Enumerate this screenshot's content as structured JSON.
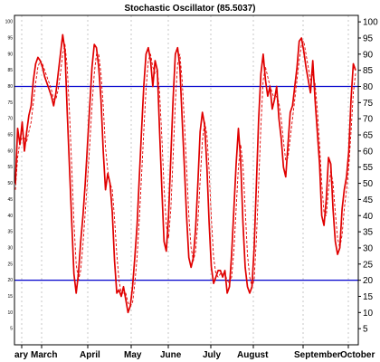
{
  "chart_data": {
    "type": "line",
    "title": "Stochastic Oscillator (85.5037)",
    "xlabel": "",
    "ylabel": "",
    "ylim": [
      0,
      102
    ],
    "y_ticks": [
      5,
      10,
      15,
      20,
      25,
      30,
      35,
      40,
      45,
      50,
      55,
      60,
      65,
      70,
      75,
      80,
      85,
      90,
      95,
      100
    ],
    "x_labels": [
      "ary",
      "March",
      "April",
      "May",
      "June",
      "July",
      "August",
      "September",
      "October"
    ],
    "reference_lines": [
      {
        "value": 80,
        "color": "#0000cc"
      },
      {
        "value": 20,
        "color": "#0000cc"
      }
    ],
    "grid": true,
    "colors": {
      "k_line": "#e00000",
      "d_line": "#e00000",
      "reference": "#0000cc",
      "grid": "#b0b0b0"
    },
    "series": [
      {
        "values": [
          50,
          67,
          62,
          69,
          60,
          66,
          71,
          74,
          82,
          87,
          89,
          88,
          86,
          83,
          81,
          79,
          77,
          74,
          78,
          84,
          90,
          96,
          91,
          72,
          55,
          38,
          22,
          16,
          22,
          32,
          40,
          50,
          62,
          74,
          86,
          93,
          92,
          86,
          76,
          60,
          48,
          53,
          50,
          41,
          26,
          16,
          17,
          15,
          18,
          14,
          10,
          12,
          18,
          27,
          37,
          52,
          66,
          80,
          90,
          92,
          88,
          80,
          88,
          85,
          66,
          48,
          32,
          29,
          40,
          58,
          76,
          90,
          92,
          86,
          70,
          55,
          40,
          27,
          24,
          27,
          36,
          50,
          66,
          72,
          68,
          55,
          38,
          24,
          19,
          21,
          23,
          23,
          21,
          23,
          16,
          18,
          28,
          42,
          56,
          67,
          57,
          38,
          24,
          18,
          16,
          18,
          30,
          50,
          70,
          84,
          90,
          82,
          77,
          80,
          73,
          76,
          80,
          70,
          64,
          55,
          52,
          62,
          72,
          74,
          80,
          86,
          94,
          95,
          91,
          86,
          82,
          78,
          88,
          76,
          66,
          56,
          40,
          37,
          45,
          58,
          56,
          42,
          32,
          28,
          30,
          42,
          48,
          52,
          60,
          76,
          87,
          85
        ]
      },
      {
        "values": [
          48,
          58,
          63,
          64,
          64,
          63,
          66,
          69,
          75,
          81,
          86,
          88,
          87,
          85,
          83,
          81,
          79,
          76,
          76,
          79,
          84,
          90,
          93,
          86,
          72,
          55,
          38,
          25,
          20,
          23,
          31,
          41,
          51,
          62,
          74,
          84,
          90,
          90,
          84,
          74,
          61,
          54,
          50,
          48,
          39,
          28,
          20,
          16,
          16,
          16,
          13,
          12,
          13,
          19,
          27,
          39,
          52,
          66,
          79,
          88,
          90,
          86,
          84,
          85,
          78,
          64,
          49,
          37,
          33,
          42,
          58,
          75,
          87,
          90,
          82,
          69,
          55,
          40,
          30,
          26,
          29,
          38,
          51,
          63,
          69,
          65,
          54,
          39,
          27,
          22,
          21,
          22,
          22,
          22,
          20,
          19,
          21,
          29,
          42,
          55,
          62,
          56,
          42,
          28,
          21,
          18,
          20,
          33,
          50,
          68,
          82,
          86,
          83,
          80,
          78,
          76,
          77,
          75,
          70,
          63,
          57,
          58,
          64,
          70,
          76,
          82,
          88,
          93,
          94,
          90,
          86,
          82,
          84,
          81,
          73,
          62,
          50,
          41,
          40,
          48,
          54,
          50,
          41,
          33,
          30,
          34,
          42,
          48,
          55,
          66,
          78,
          84
        ]
      }
    ]
  }
}
